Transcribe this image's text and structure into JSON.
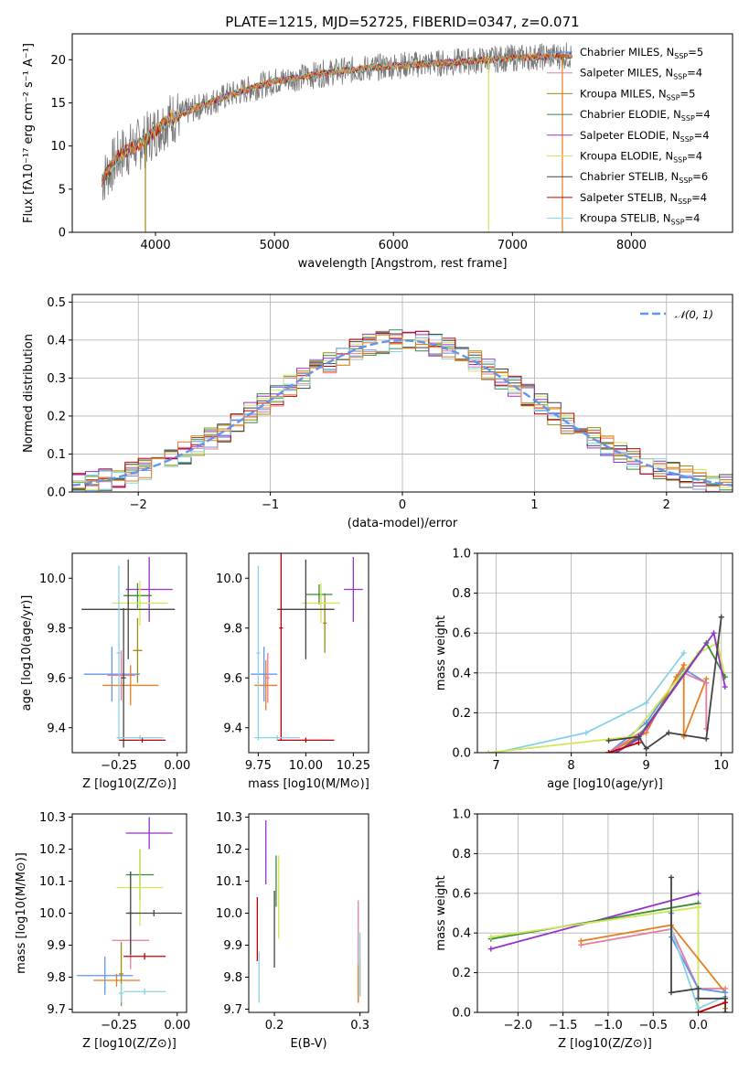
{
  "figure": {
    "title": "PLATE=1215, MJD=52725, FIBERID=0347, z=0.071"
  },
  "colors": {
    "Chabrier MILES": "#6495ed",
    "Salpeter MILES": "#e87c9a",
    "Kroupa MILES": "#a08a16",
    "Chabrier ELODIE": "#3a8a3a",
    "Salpeter ELODIE": "#9932cc",
    "Kroupa ELODIE": "#d2e65a",
    "Chabrier STELIB": "#444444",
    "Salpeter STELIB": "#c00000",
    "Kroupa STELIB": "#87d3e6",
    "accent_orange": "#e67e22",
    "normal_curve": "#6495ed"
  },
  "chart_data": [
    {
      "id": "spectrum",
      "type": "line",
      "xlabel": "wavelength [Angstrom, rest frame]",
      "ylabel": "Flux [fλ10⁻¹⁷ erg cm⁻² s⁻¹ A⁻¹]",
      "xlim": [
        3300,
        8850
      ],
      "ylim": [
        0,
        23
      ],
      "xticks": [
        4000,
        5000,
        6000,
        7000,
        8000
      ],
      "yticks": [
        0,
        5,
        10,
        15,
        20
      ],
      "continuum": {
        "x": [
          3550,
          3700,
          3900,
          4100,
          4300,
          4600,
          5000,
          5500,
          6000,
          6500,
          7000,
          7500
        ],
        "y": [
          6.0,
          9.0,
          10.5,
          13.0,
          14.2,
          15.8,
          17.5,
          18.6,
          19.3,
          19.7,
          20.2,
          20.5
        ]
      },
      "spikes": [
        {
          "x": 3915,
          "y": 0
        },
        {
          "x": 6800,
          "y": 0
        },
        {
          "x": 7420,
          "y": 0
        }
      ],
      "legend": [
        {
          "name": "Chabrier MILES",
          "nssp": "5"
        },
        {
          "name": "Salpeter MILES",
          "nssp": "4"
        },
        {
          "name": "Kroupa MILES",
          "nssp": "5"
        },
        {
          "name": "Chabrier ELODIE",
          "nssp": "4"
        },
        {
          "name": "Salpeter ELODIE",
          "nssp": "4"
        },
        {
          "name": "Kroupa ELODIE",
          "nssp": "4"
        },
        {
          "name": "Chabrier STELIB",
          "nssp": "6"
        },
        {
          "name": "Salpeter STELIB",
          "nssp": "4"
        },
        {
          "name": "Kroupa STELIB",
          "nssp": "4"
        }
      ],
      "legend_prefix": "N",
      "legend_sub": "SSP",
      "legend_placement": "right",
      "grid": false
    },
    {
      "id": "residuals",
      "type": "histogram",
      "xlabel": "(data-model)/error",
      "ylabel": "Normed distribution",
      "xlim": [
        -2.5,
        2.5
      ],
      "ylim": [
        0,
        0.52
      ],
      "xticks": [
        -2,
        -1,
        0,
        1,
        2
      ],
      "yticks": [
        0.0,
        0.1,
        0.2,
        0.3,
        0.4,
        0.5
      ],
      "bin_width": 0.1,
      "legend": [
        "𝒩(0, 1)"
      ],
      "legend_placement": "top-right",
      "grid": true
    },
    {
      "id": "age_vs_Z",
      "type": "scatter",
      "xlabel": "Z [log10(Z/Z⊙)]",
      "ylabel": "age  [log10(age/yr)]",
      "xlim": [
        -0.45,
        0.04
      ],
      "ylim": [
        9.3,
        10.1
      ],
      "xticks": [
        -0.25,
        0.0
      ],
      "yticks": [
        9.4,
        9.6,
        9.8,
        10.0
      ],
      "points": [
        {
          "model": "Chabrier MILES",
          "x": -0.28,
          "y": 9.615,
          "xerr": 0.12,
          "yerr": 0.11
        },
        {
          "model": "Salpeter MILES",
          "x": -0.24,
          "y": 9.61,
          "xerr": 0.06,
          "yerr": 0.1
        },
        {
          "model": "accent_orange",
          "x": -0.2,
          "y": 9.57,
          "xerr": 0.12,
          "yerr": 0.08
        },
        {
          "model": "Kroupa MILES",
          "x": -0.17,
          "y": 9.71,
          "xerr": 0.02,
          "yerr": 0.13
        },
        {
          "model": "Chabrier ELODIE",
          "x": -0.17,
          "y": 9.93,
          "xerr": 0.06,
          "yerr": 0.05
        },
        {
          "model": "Salpeter ELODIE",
          "x": -0.12,
          "y": 9.955,
          "xerr": 0.1,
          "yerr": 0.13
        },
        {
          "model": "Kroupa ELODIE",
          "x": -0.16,
          "y": 9.9,
          "xerr": 0.12,
          "yerr": 0.09
        },
        {
          "model": "Chabrier STELIB",
          "x": -0.21,
          "y": 9.875,
          "xerr": 0.2,
          "yerr": 0.2
        },
        {
          "model": "Chabrier STELIB",
          "x": -0.23,
          "y": 9.6,
          "xerr": 0.01,
          "yerr": 0.28
        },
        {
          "model": "Salpeter STELIB",
          "x": -0.15,
          "y": 9.35,
          "xerr": 0.1,
          "yerr": 0.01
        },
        {
          "model": "Kroupa STELIB",
          "x": -0.16,
          "y": 9.36,
          "xerr": 0.1,
          "yerr": 0.01
        },
        {
          "model": "Kroupa STELIB",
          "x": -0.25,
          "y": 9.7,
          "xerr": 0.01,
          "yerr": 0.35
        }
      ],
      "grid": false
    },
    {
      "id": "age_vs_mass",
      "type": "scatter",
      "xlabel": "mass [log10(M/M⊙)]",
      "ylabel": "",
      "xlim": [
        9.7,
        10.33
      ],
      "ylim": [
        9.3,
        10.1
      ],
      "xticks": [
        9.75,
        10.0,
        10.25
      ],
      "yticks": [
        9.4,
        9.6,
        9.8,
        10.0
      ],
      "points": [
        {
          "model": "Chabrier MILES",
          "x": 9.78,
          "y": 9.615,
          "xerr": 0.07,
          "yerr": 0.11
        },
        {
          "model": "Salpeter MILES",
          "x": 9.8,
          "y": 9.6,
          "xerr": 0.01,
          "yerr": 0.1
        },
        {
          "model": "accent_orange",
          "x": 9.79,
          "y": 9.57,
          "xerr": 0.06,
          "yerr": 0.1
        },
        {
          "model": "Kroupa MILES",
          "x": 10.1,
          "y": 9.82,
          "xerr": 0.01,
          "yerr": 0.12
        },
        {
          "model": "Chabrier ELODIE",
          "x": 10.07,
          "y": 9.935,
          "xerr": 0.07,
          "yerr": 0.04
        },
        {
          "model": "Salpeter ELODIE",
          "x": 10.25,
          "y": 9.955,
          "xerr": 0.05,
          "yerr": 0.13
        },
        {
          "model": "Kroupa ELODIE",
          "x": 10.08,
          "y": 9.9,
          "xerr": 0.1,
          "yerr": 0.08
        },
        {
          "model": "Chabrier STELIB",
          "x": 10.0,
          "y": 9.875,
          "xerr": 0.15,
          "yerr": 0.2
        },
        {
          "model": "Salpeter STELIB",
          "x": 9.87,
          "y": 9.8,
          "xerr": 0.01,
          "yerr": 0.45
        },
        {
          "model": "Salpeter STELIB",
          "x": 10.0,
          "y": 9.35,
          "xerr": 0.15,
          "yerr": 0.01
        },
        {
          "model": "Kroupa STELIB",
          "x": 9.75,
          "y": 9.7,
          "xerr": 0.01,
          "yerr": 0.35
        },
        {
          "model": "Kroupa STELIB",
          "x": 9.85,
          "y": 9.36,
          "xerr": 0.12,
          "yerr": 0.01
        }
      ],
      "grid": false
    },
    {
      "id": "mass_weight_vs_age",
      "type": "line",
      "xlabel": "age  [log10(age/yr)]",
      "ylabel": "mass weight",
      "xlim": [
        6.75,
        10.15
      ],
      "ylim": [
        0,
        1.0
      ],
      "xticks": [
        7,
        8,
        9,
        10
      ],
      "yticks": [
        0.0,
        0.2,
        0.4,
        0.6,
        0.8,
        1.0
      ],
      "series": [
        {
          "model": "Kroupa STELIB",
          "x": [
            7.0,
            8.2,
            9.0,
            9.5
          ],
          "y": [
            0.0,
            0.1,
            0.25,
            0.5
          ]
        },
        {
          "model": "Chabrier MILES",
          "x": [
            8.5,
            9.0,
            9.5,
            9.8
          ],
          "y": [
            0.0,
            0.15,
            0.42,
            0.35
          ]
        },
        {
          "model": "accent_orange",
          "x": [
            8.5,
            9.0,
            9.4,
            9.5,
            9.5,
            9.8
          ],
          "y": [
            0.0,
            0.1,
            0.38,
            0.44,
            0.08,
            0.37
          ]
        },
        {
          "model": "Salpeter MILES",
          "x": [
            8.5,
            9.0,
            9.5,
            9.8,
            9.8
          ],
          "y": [
            0.0,
            0.12,
            0.4,
            0.35,
            0.12
          ]
        },
        {
          "model": "Kroupa ELODIE",
          "x": [
            6.9,
            8.8,
            9.7,
            9.95,
            10.05
          ],
          "y": [
            0.0,
            0.08,
            0.5,
            0.55,
            0.38
          ]
        },
        {
          "model": "Chabrier ELODIE",
          "x": [
            8.6,
            8.9,
            9.8,
            10.05
          ],
          "y": [
            0.0,
            0.08,
            0.55,
            0.38
          ]
        },
        {
          "model": "Salpeter ELODIE",
          "x": [
            8.6,
            8.9,
            9.9,
            10.05
          ],
          "y": [
            0.0,
            0.07,
            0.6,
            0.33
          ]
        },
        {
          "model": "Chabrier STELIB",
          "x": [
            8.5,
            8.9,
            9.0,
            9.3,
            9.8,
            10.0
          ],
          "y": [
            0.06,
            0.08,
            0.02,
            0.1,
            0.07,
            0.68
          ]
        },
        {
          "model": "Salpeter STELIB",
          "x": [
            8.5,
            8.9
          ],
          "y": [
            0.0,
            0.05
          ]
        }
      ],
      "grid": true
    },
    {
      "id": "mass_vs_Z",
      "type": "scatter",
      "xlabel": "Z [log10(Z/Z⊙)]",
      "ylabel": "mass [log10(M/M⊙)]",
      "xlim": [
        -0.45,
        0.04
      ],
      "ylim": [
        9.69,
        10.31
      ],
      "xticks": [
        -0.25,
        0.0
      ],
      "yticks": [
        9.7,
        9.8,
        9.9,
        10.0,
        10.1,
        10.2,
        10.3
      ],
      "points": [
        {
          "model": "Chabrier MILES",
          "x": -0.31,
          "y": 9.805,
          "xerr": 0.12,
          "yerr": 0.06
        },
        {
          "model": "accent_orange",
          "x": -0.26,
          "y": 9.79,
          "xerr": 0.1,
          "yerr": 0.02
        },
        {
          "model": "Salpeter MILES",
          "x": -0.2,
          "y": 9.915,
          "xerr": 0.08,
          "yerr": 0.09
        },
        {
          "model": "Kroupa MILES",
          "x": -0.24,
          "y": 9.81,
          "xerr": 0.01,
          "yerr": 0.1
        },
        {
          "model": "Chabrier ELODIE",
          "x": -0.16,
          "y": 10.12,
          "xerr": 0.06,
          "yerr": 0.08
        },
        {
          "model": "Salpeter ELODIE",
          "x": -0.12,
          "y": 10.25,
          "xerr": 0.1,
          "yerr": 0.05
        },
        {
          "model": "Kroupa ELODIE",
          "x": -0.16,
          "y": 10.08,
          "xerr": 0.1,
          "yerr": 0.12
        },
        {
          "model": "Chabrier STELIB",
          "x": -0.1,
          "y": 10.0,
          "xerr": 0.12,
          "yerr": 0.01
        },
        {
          "model": "Salpeter STELIB",
          "x": -0.14,
          "y": 9.865,
          "xerr": 0.09,
          "yerr": 0.01
        },
        {
          "model": "Kroupa STELIB",
          "x": -0.14,
          "y": 9.755,
          "xerr": 0.09,
          "yerr": 0.01
        },
        {
          "model": "Chabrier STELIB",
          "x": -0.2,
          "y": 10.0,
          "xerr": 0.01,
          "yerr": 0.13
        },
        {
          "model": "Kroupa STELIB",
          "x": -0.24,
          "y": 9.75,
          "xerr": 0.01,
          "yerr": 0.03
        }
      ],
      "grid": false
    },
    {
      "id": "mass_vs_ebv",
      "type": "scatter",
      "xlabel": "E(B-V)",
      "ylabel": "",
      "xlim": [
        0.17,
        0.31
      ],
      "ylim": [
        9.69,
        10.31
      ],
      "xticks": [
        0.2,
        0.3
      ],
      "yticks": [
        9.7,
        9.8,
        9.9,
        10.0,
        10.1,
        10.2,
        10.3
      ],
      "points": [
        {
          "model": "Salpeter STELIB",
          "x": 0.18,
          "y": 9.95,
          "xerr": 0.0,
          "yerr": 0.1
        },
        {
          "model": "Kroupa STELIB",
          "x": 0.182,
          "y": 9.8,
          "xerr": 0.0,
          "yerr": 0.08
        },
        {
          "model": "Salpeter ELODIE",
          "x": 0.19,
          "y": 10.19,
          "xerr": 0.0,
          "yerr": 0.1
        },
        {
          "model": "Chabrier STELIB",
          "x": 0.2,
          "y": 9.95,
          "xerr": 0.0,
          "yerr": 0.12
        },
        {
          "model": "Chabrier ELODIE",
          "x": 0.202,
          "y": 10.1,
          "xerr": 0.0,
          "yerr": 0.08
        },
        {
          "model": "Kroupa ELODIE",
          "x": 0.205,
          "y": 10.05,
          "xerr": 0.0,
          "yerr": 0.13
        },
        {
          "model": "Salpeter MILES",
          "x": 0.298,
          "y": 9.88,
          "xerr": 0.0,
          "yerr": 0.16
        },
        {
          "model": "Kroupa MILES",
          "x": 0.3,
          "y": 9.8,
          "xerr": 0.0,
          "yerr": 0.06
        },
        {
          "model": "accent_orange",
          "x": 0.298,
          "y": 9.78,
          "xerr": 0.0,
          "yerr": 0.06
        },
        {
          "model": "Kroupa STELIB",
          "x": 0.3,
          "y": 9.84,
          "xerr": 0.0,
          "yerr": 0.1
        }
      ],
      "grid": false
    },
    {
      "id": "mass_weight_vs_Z",
      "type": "line",
      "xlabel": "Z [log10(Z/Z⊙)]",
      "ylabel": "mass weight",
      "xlim": [
        -2.45,
        0.38
      ],
      "ylim": [
        0,
        1.0
      ],
      "xticks": [
        -2.0,
        -1.5,
        -1.0,
        -0.5,
        0.0
      ],
      "yticks": [
        0.0,
        0.2,
        0.4,
        0.6,
        0.8,
        1.0
      ],
      "series": [
        {
          "model": "Salpeter ELODIE",
          "x": [
            -2.3,
            0.0
          ],
          "y": [
            0.32,
            0.6
          ]
        },
        {
          "model": "Chabrier ELODIE",
          "x": [
            -2.3,
            0.0
          ],
          "y": [
            0.37,
            0.55
          ]
        },
        {
          "model": "Kroupa ELODIE",
          "x": [
            -2.3,
            0.0,
            0.0
          ],
          "y": [
            0.38,
            0.53,
            0.02
          ]
        },
        {
          "model": "Salpeter MILES",
          "x": [
            -1.3,
            -0.3,
            0.0,
            0.3
          ],
          "y": [
            0.34,
            0.42,
            0.12,
            0.12
          ]
        },
        {
          "model": "accent_orange",
          "x": [
            -1.3,
            -0.3,
            0.3,
            0.3
          ],
          "y": [
            0.36,
            0.44,
            0.1,
            0.02
          ]
        },
        {
          "model": "Chabrier MILES",
          "x": [
            -0.3,
            -0.3,
            0.0,
            0.3
          ],
          "y": [
            0.5,
            0.38,
            0.12,
            0.1
          ]
        },
        {
          "model": "Kroupa STELIB",
          "x": [
            -0.3,
            0.0,
            0.3
          ],
          "y": [
            0.42,
            0.02,
            0.08
          ]
        },
        {
          "model": "Chabrier STELIB",
          "x": [
            -0.3,
            -0.3,
            0.0,
            0.0,
            0.3,
            0.3
          ],
          "y": [
            0.68,
            0.1,
            0.12,
            0.07,
            0.07,
            0.0
          ]
        },
        {
          "model": "Salpeter STELIB",
          "x": [
            0.0,
            0.3
          ],
          "y": [
            0.0,
            0.05
          ]
        }
      ],
      "grid": true
    }
  ]
}
